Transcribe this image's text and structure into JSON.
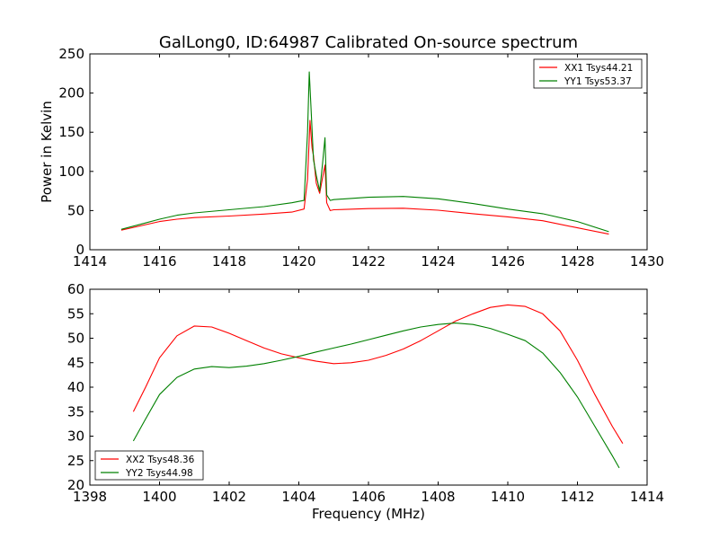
{
  "title": "GalLong0, ID:64987 Calibrated On-source spectrum",
  "colors": {
    "red": "#ff0000",
    "green": "#008000"
  },
  "chart_data": [
    {
      "type": "line",
      "title": "GalLong0, ID:64987 Calibrated On-source spectrum",
      "xlabel": "",
      "ylabel": "Power in Kelvin",
      "xlim": [
        1414,
        1430
      ],
      "ylim": [
        0,
        250
      ],
      "xticks": [
        "1414",
        "1416",
        "1418",
        "1420",
        "1422",
        "1424",
        "1426",
        "1428",
        "1430"
      ],
      "yticks": [
        "0",
        "50",
        "100",
        "150",
        "200",
        "250"
      ],
      "grid": false,
      "legend_position": "top-right",
      "series": [
        {
          "name": "XX1 Tsys44.21",
          "color": "#ff0000",
          "x": [
            1414.9,
            1415.5,
            1416,
            1416.5,
            1417,
            1418,
            1419,
            1419.8,
            1420.15,
            1420.25,
            1420.32,
            1420.38,
            1420.42,
            1420.5,
            1420.6,
            1420.68,
            1420.75,
            1420.8,
            1420.9,
            1421,
            1422,
            1423,
            1424,
            1425,
            1426,
            1427,
            1428,
            1428.9
          ],
          "y": [
            25,
            31,
            36,
            39,
            41,
            43,
            45.5,
            48,
            52,
            90,
            165,
            130,
            120,
            85,
            72,
            92,
            108,
            60,
            50,
            51,
            52.5,
            53,
            50.5,
            46,
            42,
            37,
            28,
            20
          ]
        },
        {
          "name": "YY1 Tsys53.37",
          "color": "#008000",
          "x": [
            1414.9,
            1415.5,
            1416,
            1416.5,
            1417,
            1418,
            1419,
            1419.8,
            1420.15,
            1420.25,
            1420.3,
            1420.35,
            1420.42,
            1420.5,
            1420.6,
            1420.68,
            1420.75,
            1420.8,
            1420.9,
            1421,
            1422,
            1423,
            1424,
            1425,
            1426,
            1427,
            1428,
            1428.9
          ],
          "y": [
            26,
            33,
            39,
            44,
            47,
            51,
            55,
            60,
            63,
            150,
            227,
            180,
            115,
            95,
            75,
            110,
            143,
            70,
            63,
            64,
            67,
            68,
            65,
            59,
            52,
            46,
            36,
            23
          ]
        }
      ]
    },
    {
      "type": "line",
      "title": "",
      "xlabel": "Frequency (MHz)",
      "ylabel": "",
      "xlim": [
        1398,
        1414
      ],
      "ylim": [
        20,
        60
      ],
      "xticks": [
        "1398",
        "1400",
        "1402",
        "1404",
        "1406",
        "1408",
        "1410",
        "1412",
        "1414"
      ],
      "yticks": [
        "20",
        "25",
        "30",
        "35",
        "40",
        "45",
        "50",
        "55",
        "60"
      ],
      "grid": false,
      "legend_position": "bottom-left",
      "series": [
        {
          "name": "XX2 Tsys48.36",
          "color": "#ff0000",
          "x": [
            1399.25,
            1399.6,
            1400,
            1400.5,
            1401,
            1401.5,
            1402,
            1402.5,
            1403,
            1403.5,
            1404,
            1404.5,
            1405,
            1405.5,
            1406,
            1406.5,
            1407,
            1407.5,
            1408,
            1408.5,
            1409,
            1409.5,
            1410,
            1410.5,
            1411,
            1411.5,
            1412,
            1412.5,
            1413,
            1413.3
          ],
          "y": [
            35,
            40,
            46,
            50.5,
            52.5,
            52.3,
            51,
            49.5,
            48,
            46.8,
            46,
            45.3,
            44.8,
            45,
            45.5,
            46.5,
            47.8,
            49.5,
            51.5,
            53.5,
            55,
            56.3,
            56.8,
            56.5,
            55,
            51.5,
            45.5,
            38.5,
            32,
            28.5
          ]
        },
        {
          "name": "YY2 Tsys44.98",
          "color": "#008000",
          "x": [
            1399.25,
            1399.6,
            1400,
            1400.5,
            1401,
            1401.5,
            1402,
            1402.5,
            1403,
            1403.5,
            1404,
            1404.5,
            1405,
            1405.5,
            1406,
            1406.5,
            1407,
            1407.5,
            1408,
            1408.5,
            1409,
            1409.5,
            1410,
            1410.5,
            1411,
            1411.5,
            1412,
            1412.5,
            1413,
            1413.2
          ],
          "y": [
            29,
            33.5,
            38.5,
            42,
            43.7,
            44.2,
            44,
            44.3,
            44.8,
            45.5,
            46.3,
            47.2,
            48,
            48.8,
            49.7,
            50.6,
            51.5,
            52.3,
            52.8,
            53.1,
            52.8,
            52,
            50.8,
            49.5,
            47,
            43,
            38,
            32,
            26,
            23.5
          ]
        }
      ]
    }
  ]
}
